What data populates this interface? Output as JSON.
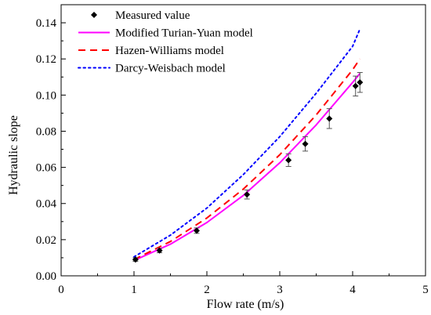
{
  "chart_data": {
    "type": "scatter",
    "xlabel": "Flow rate (m/s)",
    "ylabel": "Hydraulic slope",
    "xlim": [
      0,
      5
    ],
    "ylim": [
      0,
      0.15
    ],
    "x_ticks": [
      0,
      1,
      2,
      3,
      4,
      5
    ],
    "y_ticks": [
      0.0,
      0.02,
      0.04,
      0.06,
      0.08,
      0.1,
      0.12,
      0.14
    ],
    "x_tick_labels": [
      "0",
      "1",
      "2",
      "3",
      "4",
      "5"
    ],
    "y_tick_labels": [
      "0.00",
      "0.02",
      "0.04",
      "0.06",
      "0.08",
      "0.10",
      "0.12",
      "0.14"
    ],
    "grid": false,
    "legend_position": "top-left",
    "points": {
      "name": "Measured value",
      "color": "#000000",
      "marker": "diamond",
      "data": [
        {
          "x": 1.02,
          "y": 0.009,
          "err": 0.001
        },
        {
          "x": 1.35,
          "y": 0.014,
          "err": 0.0012
        },
        {
          "x": 1.86,
          "y": 0.025,
          "err": 0.0015
        },
        {
          "x": 2.55,
          "y": 0.045,
          "err": 0.0025
        },
        {
          "x": 3.12,
          "y": 0.064,
          "err": 0.0035
        },
        {
          "x": 3.35,
          "y": 0.073,
          "err": 0.004
        },
        {
          "x": 3.68,
          "y": 0.087,
          "err": 0.0055
        },
        {
          "x": 4.04,
          "y": 0.105,
          "err": 0.0055
        },
        {
          "x": 4.1,
          "y": 0.107,
          "err": 0.0055
        }
      ]
    },
    "series": [
      {
        "name": "Modified Turian-Yuan model",
        "color": "#ff00ff",
        "style": "solid",
        "x": [
          1.0,
          1.5,
          2.0,
          2.5,
          3.0,
          3.5,
          4.0,
          4.1
        ],
        "y": [
          0.0085,
          0.0175,
          0.0295,
          0.0445,
          0.0625,
          0.0835,
          0.107,
          0.112
        ]
      },
      {
        "name": "Hazen-Williams model",
        "color": "#ff0000",
        "style": "dashed",
        "x": [
          1.0,
          1.5,
          2.0,
          2.5,
          3.0,
          3.5,
          4.0,
          4.1
        ],
        "y": [
          0.009,
          0.019,
          0.032,
          0.048,
          0.067,
          0.089,
          0.114,
          0.12
        ]
      },
      {
        "name": "Darcy-Weisbach model",
        "color": "#0000ff",
        "style": "dotted",
        "x": [
          1.0,
          1.5,
          2.0,
          2.5,
          3.0,
          3.5,
          4.0,
          4.1
        ],
        "y": [
          0.0105,
          0.0225,
          0.0375,
          0.056,
          0.077,
          0.101,
          0.127,
          0.1365
        ]
      }
    ]
  }
}
